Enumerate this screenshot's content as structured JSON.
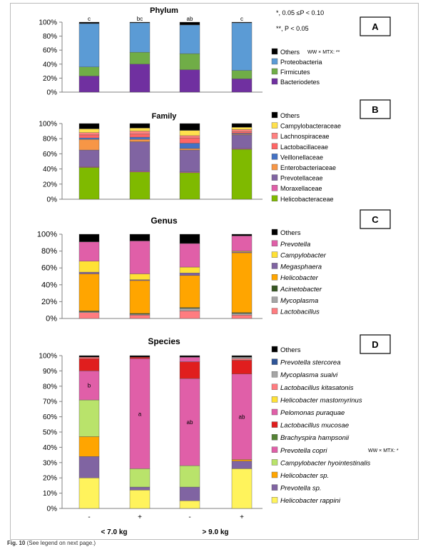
{
  "caption": {
    "label": "Fig. 10",
    "text": "(See legend on next page.)"
  },
  "significance": {
    "line1": "*, 0.05 ≤P < 0.10",
    "line2": "**, P < 0.05"
  },
  "x_axis": {
    "treatments": [
      "-",
      "+",
      "-",
      "+"
    ],
    "groups": [
      "< 7.0 kg",
      "> 9.0 kg"
    ]
  },
  "chart_data": [
    {
      "panel": "A",
      "type": "bar",
      "stacked": true,
      "title": "Phylum",
      "categories": [
        "-",
        "+",
        "-",
        "+"
      ],
      "yticks": [
        "0%",
        "20%",
        "40%",
        "60%",
        "80%",
        "100%"
      ],
      "ylim": [
        0,
        100
      ],
      "bar_labels": [
        "c",
        "bc",
        "ab",
        "c"
      ],
      "legend_note": "WW × MTX: **",
      "series": [
        {
          "name": "Bacteriodetes",
          "color": "#7030a0",
          "values": [
            23,
            40,
            32,
            19
          ]
        },
        {
          "name": "Firmicutes",
          "color": "#70ad47",
          "values": [
            13,
            17,
            23,
            12
          ]
        },
        {
          "name": "Proteobacteria",
          "color": "#5b9bd5",
          "values": [
            62,
            42,
            41,
            68
          ]
        },
        {
          "name": "Others",
          "color": "#000000",
          "values": [
            2,
            1,
            4,
            1
          ]
        }
      ]
    },
    {
      "panel": "B",
      "type": "bar",
      "stacked": true,
      "title": "Family",
      "categories": [
        "-",
        "+",
        "-",
        "+"
      ],
      "yticks": [
        "0%",
        "20%",
        "40%",
        "60%",
        "80%",
        "100%"
      ],
      "ylim": [
        0,
        100
      ],
      "series": [
        {
          "name": "Helicobacteraceae",
          "color": "#7fba00",
          "values": [
            42,
            36,
            35,
            66
          ]
        },
        {
          "name": "Moraxellaceae",
          "color": "#e05fa8",
          "values": [
            1,
            1,
            1,
            1
          ]
        },
        {
          "name": "Prevotellaceae",
          "color": "#8064a2",
          "values": [
            22,
            39,
            29,
            18
          ]
        },
        {
          "name": "Enterobacteriaceae",
          "color": "#f79646",
          "values": [
            14,
            3,
            2,
            1
          ]
        },
        {
          "name": "Veillonellaceae",
          "color": "#4472c4",
          "values": [
            2,
            3,
            7,
            1
          ]
        },
        {
          "name": "Lactobacillaceae",
          "color": "#ff6666",
          "values": [
            4,
            4,
            7,
            2
          ]
        },
        {
          "name": "Lachnospiraceae",
          "color": "#ff8080",
          "values": [
            3,
            4,
            3,
            3
          ]
        },
        {
          "name": "Campylobacteraceae",
          "color": "#ffe14d",
          "values": [
            5,
            4,
            7,
            3
          ]
        },
        {
          "name": "Others",
          "color": "#000000",
          "values": [
            7,
            6,
            9,
            5
          ]
        }
      ]
    },
    {
      "panel": "C",
      "type": "bar",
      "stacked": true,
      "title": "Genus",
      "categories": [
        "-",
        "+",
        "-",
        "+"
      ],
      "yticks": [
        "0%",
        "20%",
        "40%",
        "60%",
        "80%",
        "100%"
      ],
      "ylim": [
        0,
        100
      ],
      "series": [
        {
          "name": "Lactobacillus",
          "color": "#ff7c80",
          "values": [
            7,
            4,
            9,
            4
          ]
        },
        {
          "name": "Mycoplasma",
          "color": "#a6a6a6",
          "values": [
            1,
            1,
            3,
            2
          ]
        },
        {
          "name": "Acinetobacter",
          "color": "#375623",
          "values": [
            1,
            1,
            1,
            1
          ]
        },
        {
          "name": "Helicobacter",
          "color": "#ffa500",
          "values": [
            44,
            39,
            38,
            71
          ]
        },
        {
          "name": "Megasphaera",
          "color": "#8064a2",
          "values": [
            2,
            1,
            3,
            1
          ]
        },
        {
          "name": "Campylobacter",
          "color": "#ffe135",
          "values": [
            13,
            7,
            7,
            1
          ]
        },
        {
          "name": "Prevotella",
          "color": "#e05fa8",
          "values": [
            23,
            39,
            28,
            18
          ]
        },
        {
          "name": "Others",
          "color": "#000000",
          "values": [
            9,
            8,
            11,
            2
          ]
        }
      ]
    },
    {
      "panel": "D",
      "type": "bar",
      "stacked": true,
      "title": "Species",
      "categories": [
        "-",
        "+",
        "-",
        "+"
      ],
      "yticks": [
        "0%",
        "10%",
        "20%",
        "30%",
        "40%",
        "50%",
        "60%",
        "70%",
        "80%",
        "90%",
        "100%"
      ],
      "ylim": [
        0,
        100
      ],
      "bar_labels": [
        "b",
        "a",
        "ab",
        "ab"
      ],
      "legend_note": "WW × MTX: *",
      "series": [
        {
          "name": "Helicobacter rappini",
          "color": "#fff35c",
          "values": [
            20,
            12,
            5,
            26
          ]
        },
        {
          "name": "Prevotella sp.",
          "color": "#8064a2",
          "values": [
            14,
            2,
            9,
            5
          ]
        },
        {
          "name": "Helicobacter sp.",
          "color": "#ffa500",
          "values": [
            13,
            0,
            0,
            1
          ]
        },
        {
          "name": "Campylobacter hyointestinalis",
          "color": "#b9e36b",
          "values": [
            24,
            12,
            14,
            0
          ]
        },
        {
          "name": "Prevotella copri",
          "color": "#e05fa8",
          "values": [
            19,
            72,
            57,
            56
          ]
        },
        {
          "name": "Brachyspira hampsonii",
          "color": "#548235",
          "values": [
            0,
            0,
            0,
            0
          ]
        },
        {
          "name": "Lactobacillus mucosae",
          "color": "#e01e1e",
          "values": [
            8,
            1,
            11,
            9
          ]
        },
        {
          "name": "Pelomonas puraquae",
          "color": "#e05fa8",
          "values": [
            0,
            0,
            3,
            0
          ]
        },
        {
          "name": "Helicobacter mastomyrinus",
          "color": "#ffe135",
          "values": [
            0,
            0,
            0,
            0
          ]
        },
        {
          "name": "Lactobacillus kitasatonis",
          "color": "#ff7c80",
          "values": [
            1,
            0,
            0,
            1
          ]
        },
        {
          "name": "Mycoplasma sualvi",
          "color": "#a6a6a6",
          "values": [
            0,
            0,
            0,
            1
          ]
        },
        {
          "name": "Prevotella stercorea",
          "color": "#2f5597",
          "values": [
            0,
            0,
            0,
            0
          ]
        },
        {
          "name": "Others",
          "color": "#000000",
          "values": [
            1,
            1,
            1,
            1
          ]
        }
      ]
    }
  ]
}
